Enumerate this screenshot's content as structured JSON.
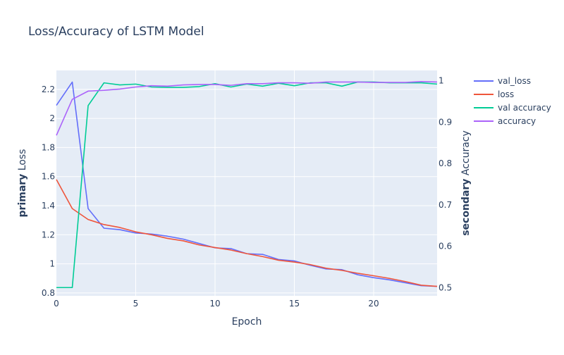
{
  "chart_data": {
    "type": "line",
    "title": "Loss/Accuracy of LSTM Model",
    "xlabel": "Epoch",
    "ylabel_primary": {
      "bold": "primary",
      "rest": "Loss"
    },
    "ylabel_secondary": {
      "bold": "secondary",
      "rest": "Accuracy"
    },
    "xlim": [
      0,
      24
    ],
    "ylim_primary": [
      0.78,
      2.33
    ],
    "ylim_secondary": [
      0.48,
      1.025
    ],
    "x_ticks": [
      0,
      5,
      10,
      15,
      20
    ],
    "x_tick_labels": [
      "0",
      "5",
      "10",
      "15",
      "20"
    ],
    "y_ticks_primary": [
      0.8,
      1,
      1.2,
      1.4,
      1.6,
      1.8,
      2,
      2.2
    ],
    "y_tick_labels_primary": [
      "0.8",
      "1",
      "1.2",
      "1.4",
      "1.6",
      "1.8",
      "2",
      "2.2"
    ],
    "y_ticks_secondary": [
      0.5,
      0.6,
      0.7,
      0.8,
      0.9,
      1
    ],
    "y_tick_labels_secondary": [
      "0.5",
      "0.6",
      "0.7",
      "0.8",
      "0.9",
      "1"
    ],
    "grid": true,
    "legend_position": "top-right outside",
    "x": [
      0,
      1,
      2,
      3,
      4,
      5,
      6,
      7,
      8,
      9,
      10,
      11,
      12,
      13,
      14,
      15,
      16,
      17,
      18,
      19,
      20,
      21,
      22,
      23,
      24
    ],
    "series": [
      {
        "name": "val_loss",
        "axis": "primary",
        "color": "#636efa",
        "values": [
          2.09,
          2.25,
          1.38,
          1.245,
          1.235,
          1.212,
          1.205,
          1.19,
          1.17,
          1.14,
          1.11,
          1.105,
          1.07,
          1.065,
          1.03,
          1.02,
          0.99,
          0.965,
          0.96,
          0.925,
          0.905,
          0.89,
          0.87,
          0.85,
          0.845
        ]
      },
      {
        "name": "loss",
        "axis": "primary",
        "color": "#EF553B",
        "values": [
          1.58,
          1.38,
          1.305,
          1.27,
          1.25,
          1.22,
          1.2,
          1.175,
          1.158,
          1.13,
          1.112,
          1.095,
          1.07,
          1.05,
          1.025,
          1.012,
          0.995,
          0.97,
          0.955,
          0.935,
          0.918,
          0.9,
          0.878,
          0.853,
          0.845
        ]
      },
      {
        "name": "val accuracy",
        "axis": "secondary",
        "color": "#00cc96",
        "values": [
          0.5,
          0.5,
          0.94,
          0.995,
          0.99,
          0.992,
          0.985,
          0.984,
          0.984,
          0.986,
          0.993,
          0.985,
          0.992,
          0.987,
          0.994,
          0.988,
          0.995,
          0.995,
          0.987,
          0.997,
          0.997,
          0.995,
          0.995,
          0.995,
          0.992
        ]
      },
      {
        "name": "accuracy",
        "axis": "secondary",
        "color": "#ab63fa",
        "values": [
          0.868,
          0.955,
          0.975,
          0.977,
          0.98,
          0.985,
          0.988,
          0.987,
          0.99,
          0.991,
          0.991,
          0.989,
          0.993,
          0.993,
          0.995,
          0.995,
          0.994,
          0.997,
          0.997,
          0.997,
          0.996,
          0.996,
          0.996,
          0.998,
          0.997
        ]
      }
    ]
  }
}
